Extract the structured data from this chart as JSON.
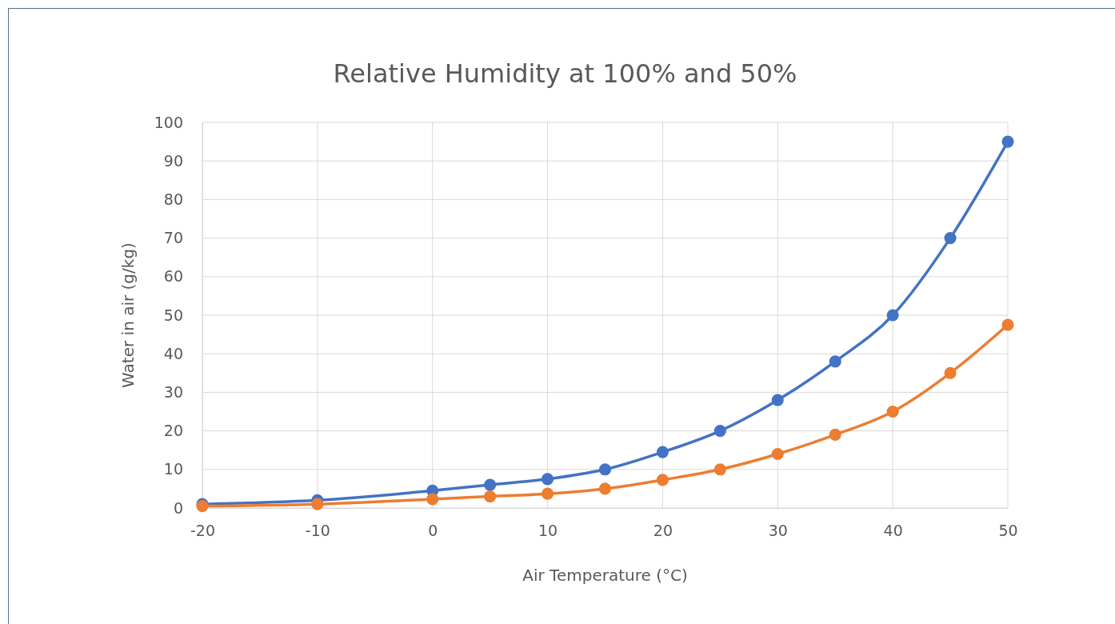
{
  "chart_data": {
    "type": "line",
    "title": "Relative Humidity at 100% and 50%",
    "xlabel": "Air Temperature (°C)",
    "ylabel": "Water in air (g/kg)",
    "x": [
      -20,
      -10,
      0,
      5,
      10,
      15,
      20,
      25,
      30,
      35,
      40,
      45,
      50
    ],
    "series": [
      {
        "color": "#4472c4",
        "values": [
          1,
          2,
          4.5,
          6,
          7.5,
          10,
          14.5,
          20,
          28,
          38,
          50,
          70,
          95
        ]
      },
      {
        "color": "#ed7d31",
        "values": [
          0.5,
          1,
          2.3,
          3,
          3.7,
          5,
          7.3,
          10,
          14,
          19,
          25,
          35,
          47.5
        ]
      }
    ],
    "xlim": [
      -20,
      50
    ],
    "xticks": [
      -20,
      -10,
      0,
      10,
      20,
      30,
      40,
      50
    ],
    "ylim": [
      0,
      100
    ],
    "yticks": [
      0,
      10,
      20,
      30,
      40,
      50,
      60,
      70,
      80,
      90,
      100
    ],
    "grid": true,
    "marker": "circle",
    "line_style": "solid"
  }
}
